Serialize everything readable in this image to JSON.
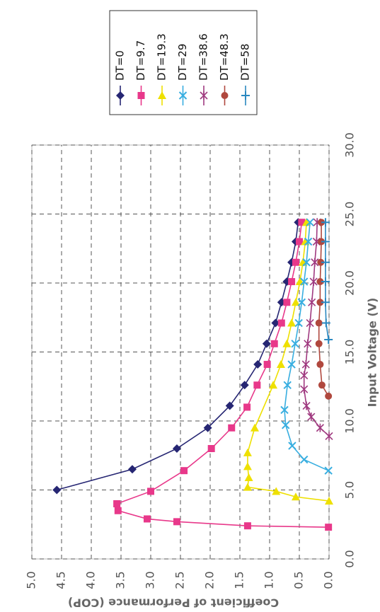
{
  "chart_data": {
    "type": "line",
    "x_label": "Input Voltage (V)",
    "y_label": "Coefficient of Performance (COP)",
    "xlim": [
      0,
      30
    ],
    "xticks": [
      {
        "value": 0,
        "label": "0.0"
      },
      {
        "value": 5,
        "label": "5.0"
      },
      {
        "value": 10,
        "label": "10.0"
      },
      {
        "value": 15,
        "label": "15.0"
      },
      {
        "value": 20,
        "label": "20.0"
      },
      {
        "value": 25,
        "label": "25.0"
      },
      {
        "value": 30,
        "label": "30.0"
      }
    ],
    "ylim": [
      0,
      5
    ],
    "yticks": [
      {
        "value": 0,
        "label": "0.0"
      },
      {
        "value": 0.5,
        "label": "0.5"
      },
      {
        "value": 1,
        "label": "1.0"
      },
      {
        "value": 1.5,
        "label": "1.5"
      },
      {
        "value": 2,
        "label": "2.0"
      },
      {
        "value": 2.5,
        "label": "2.5"
      },
      {
        "value": 3,
        "label": "3.0"
      },
      {
        "value": 3.5,
        "label": "3.5"
      },
      {
        "value": 4,
        "label": "4.0"
      },
      {
        "value": 4.5,
        "label": "4.5"
      },
      {
        "value": 5,
        "label": "5.0"
      }
    ],
    "grid": true,
    "legend": "top-right",
    "series": [
      {
        "name": "DT=0",
        "color": "#262673",
        "marker": "diamond",
        "x": [
          5.0,
          6.5,
          8.0,
          9.5,
          11.1,
          12.6,
          14.1,
          15.6,
          17.1,
          18.6,
          20.1,
          21.5,
          23.0,
          24.4
        ],
        "values": [
          4.58,
          3.31,
          2.56,
          2.04,
          1.67,
          1.42,
          1.2,
          1.05,
          0.9,
          0.8,
          0.71,
          0.63,
          0.56,
          0.52
        ]
      },
      {
        "name": "DT=9.7",
        "color": "#e8388a",
        "marker": "square",
        "x": [
          2.3,
          2.4,
          2.7,
          2.9,
          3.5,
          4.0,
          4.9,
          6.4,
          8.0,
          9.5,
          11.0,
          12.6,
          14.1,
          15.6,
          17.1,
          18.6,
          20.1,
          21.5,
          23.0,
          24.4
        ],
        "values": [
          0.01,
          1.37,
          2.56,
          3.06,
          3.55,
          3.57,
          3.0,
          2.44,
          1.98,
          1.64,
          1.38,
          1.21,
          1.04,
          0.92,
          0.8,
          0.71,
          0.63,
          0.56,
          0.5,
          0.46
        ]
      },
      {
        "name": "DT=19.3",
        "color": "#eee000",
        "marker": "triangle",
        "x": [
          4.2,
          4.5,
          4.9,
          5.2,
          5.9,
          6.7,
          7.7,
          9.5,
          12.6,
          14.1,
          15.6,
          17.1,
          18.6,
          20.1,
          21.5,
          23.0,
          24.4
        ],
        "values": [
          0.0,
          0.56,
          0.89,
          1.37,
          1.35,
          1.37,
          1.37,
          1.25,
          0.94,
          0.81,
          0.71,
          0.63,
          0.56,
          0.49,
          0.44,
          0.4,
          0.38
        ]
      },
      {
        "name": "DT=29",
        "color": "#38aee0",
        "marker": "x",
        "x": [
          6.4,
          7.2,
          8.2,
          9.7,
          10.8,
          12.6,
          14.1,
          15.6,
          17.1,
          18.6,
          20.1,
          21.5,
          23.0,
          24.4
        ],
        "values": [
          0.01,
          0.42,
          0.62,
          0.73,
          0.75,
          0.7,
          0.63,
          0.57,
          0.51,
          0.46,
          0.42,
          0.38,
          0.35,
          0.32
        ]
      },
      {
        "name": "DT=38.6",
        "color": "#a03a80",
        "marker": "asterisk",
        "x": [
          8.9,
          9.5,
          10.3,
          11.1,
          12.3,
          13.3,
          14.1,
          15.6,
          17.1,
          18.6,
          20.1,
          21.5,
          23.0,
          24.4
        ],
        "values": [
          0.0,
          0.15,
          0.3,
          0.38,
          0.42,
          0.42,
          0.39,
          0.36,
          0.32,
          0.29,
          0.26,
          0.24,
          0.21,
          0.2
        ]
      },
      {
        "name": "DT=48.3",
        "color": "#b0483e",
        "marker": "circle",
        "x": [
          11.8,
          12.6,
          14.1,
          15.6,
          17.1,
          18.6,
          20.1,
          21.5,
          23.0,
          24.4
        ],
        "values": [
          0.01,
          0.12,
          0.15,
          0.17,
          0.17,
          0.15,
          0.15,
          0.14,
          0.13,
          0.13
        ]
      },
      {
        "name": "DT=58",
        "color": "#2a88c0",
        "marker": "plus",
        "x": [
          15.9,
          17.1,
          18.6,
          20.1,
          21.5,
          23.0,
          24.4
        ],
        "values": [
          0.01,
          0.05,
          0.06,
          0.06,
          0.06,
          0.06,
          0.06
        ]
      }
    ]
  }
}
